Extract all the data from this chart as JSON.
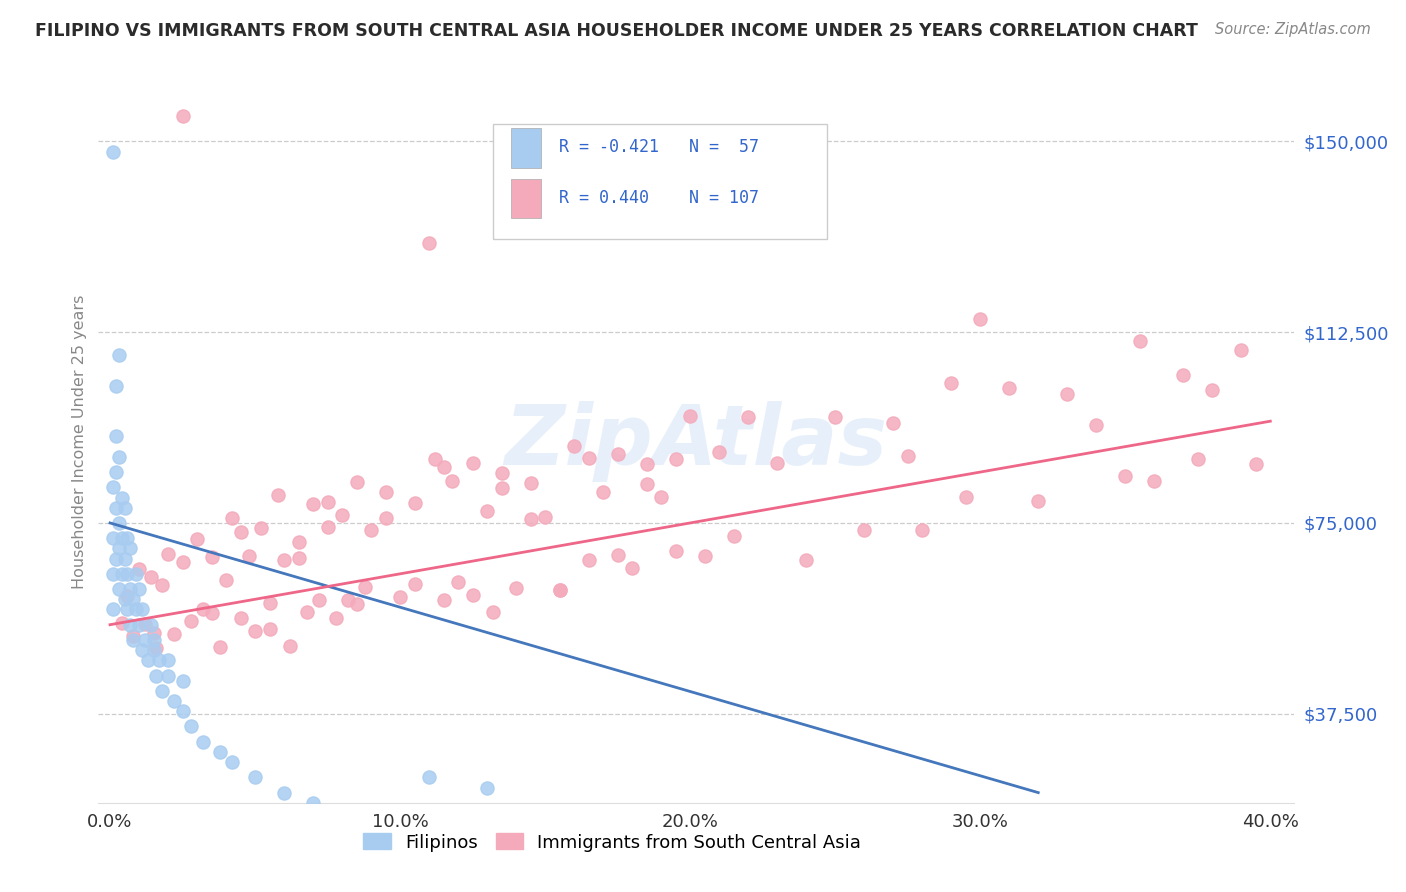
{
  "title": "FILIPINO VS IMMIGRANTS FROM SOUTH CENTRAL ASIA HOUSEHOLDER INCOME UNDER 25 YEARS CORRELATION CHART",
  "source": "Source: ZipAtlas.com",
  "ylabel": "Householder Income Under 25 years",
  "xlim": [
    -0.004,
    0.408
  ],
  "ylim": [
    20000,
    162000
  ],
  "yticks": [
    37500,
    75000,
    112500,
    150000
  ],
  "ytick_labels": [
    "$37,500",
    "$75,000",
    "$112,500",
    "$150,000"
  ],
  "xticks": [
    0.0,
    0.1,
    0.2,
    0.3,
    0.4
  ],
  "xtick_labels": [
    "0.0%",
    "10.0%",
    "20.0%",
    "30.0%",
    "40.0%"
  ],
  "color_filipino": "#A8CCF0",
  "color_sca": "#F4AABB",
  "line_color_filipino": "#4477BB",
  "line_color_sca": "#EE6688",
  "watermark": "ZipAtlas",
  "fil_line_x0": 0.0,
  "fil_line_y0": 75000,
  "fil_line_x1": 0.32,
  "fil_line_y1": 22000,
  "sca_line_x0": 0.0,
  "sca_line_y0": 55000,
  "sca_line_x1": 0.4,
  "sca_line_y1": 95000
}
